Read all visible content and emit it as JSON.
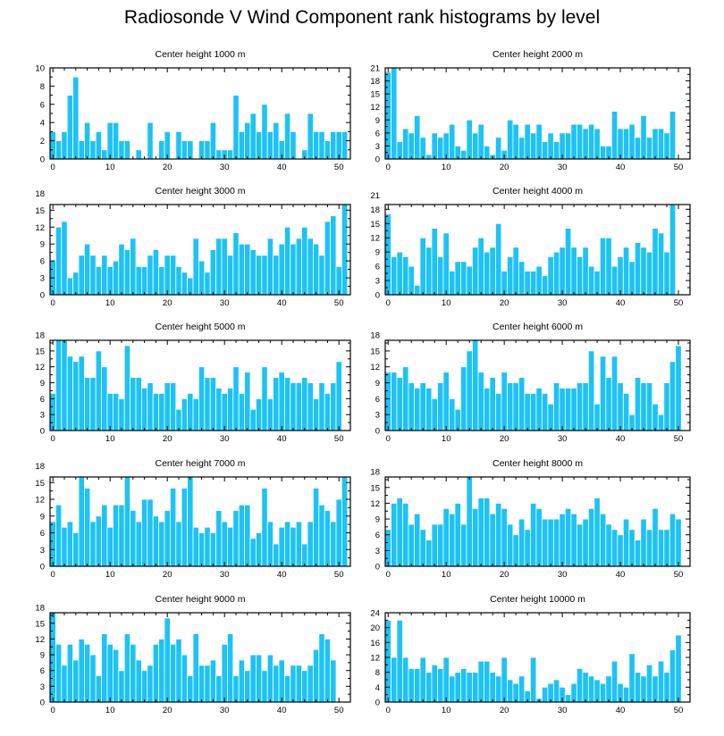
{
  "title": "Radiosonde V Wind Component rank histograms by level",
  "colors": {
    "bar": "#1cc3f4",
    "bar_stroke": "#ffffff",
    "axis": "#000000"
  },
  "chart_data": [
    {
      "type": "bar",
      "title": "Center height 1000 m",
      "xlim": [
        -0.5,
        52
      ],
      "ylim": [
        0,
        10
      ],
      "xticks": [
        0,
        10,
        20,
        30,
        40,
        50
      ],
      "yticks": [
        0,
        2,
        4,
        6,
        8,
        10
      ],
      "values": [
        3,
        2,
        3,
        7,
        9,
        2,
        4,
        2,
        3,
        1,
        4,
        4,
        2,
        2,
        0,
        1,
        0,
        4,
        0,
        2,
        3,
        0,
        3,
        2,
        2,
        0,
        2,
        2,
        4,
        1,
        1,
        1,
        7,
        3,
        4,
        5,
        3,
        6,
        3,
        4,
        2,
        5,
        3,
        0,
        1,
        5,
        3,
        3,
        2,
        3,
        3,
        3
      ]
    },
    {
      "type": "bar",
      "title": "Center height 2000 m",
      "xlim": [
        -0.5,
        52
      ],
      "ylim": [
        0,
        21
      ],
      "xticks": [
        0,
        10,
        20,
        30,
        40,
        50
      ],
      "yticks": [
        0,
        3,
        6,
        9,
        12,
        15,
        18,
        21
      ],
      "values": [
        20,
        21,
        4,
        7,
        6,
        10,
        5,
        1,
        6,
        5,
        6,
        8,
        3,
        2,
        9,
        6,
        8,
        3,
        1,
        5,
        2,
        9,
        8,
        5,
        8,
        6,
        8,
        4,
        6,
        4,
        6,
        6,
        8,
        8,
        7,
        8,
        7,
        3,
        3,
        11,
        7,
        7,
        8,
        5,
        10,
        5,
        7,
        7,
        6,
        11,
        0,
        0
      ]
    },
    {
      "type": "bar",
      "title": "Center height 3000 m",
      "xlim": [
        -0.5,
        52
      ],
      "ylim": [
        0,
        16
      ],
      "xticks": [
        0,
        10,
        20,
        30,
        40,
        50
      ],
      "yticks": [
        0,
        3,
        6,
        9,
        12,
        15,
        18
      ],
      "values": [
        6,
        12,
        13,
        3,
        4,
        7,
        9,
        7,
        5,
        7,
        5,
        6,
        9,
        8,
        10,
        5,
        5,
        7,
        8,
        5,
        7,
        7,
        5,
        4,
        3,
        10,
        6,
        4,
        8,
        10,
        10,
        7,
        11,
        9,
        9,
        8,
        7,
        7,
        10,
        7,
        9,
        12,
        9,
        10,
        12,
        10,
        9,
        7,
        13,
        14,
        5,
        16
      ]
    },
    {
      "type": "bar",
      "title": "Center height 4000 m",
      "xlim": [
        -0.5,
        52
      ],
      "ylim": [
        0,
        19
      ],
      "xticks": [
        0,
        10,
        20,
        30,
        40,
        50
      ],
      "yticks": [
        0,
        3,
        6,
        9,
        12,
        15,
        18,
        21
      ],
      "values": [
        17,
        8,
        9,
        8,
        6,
        2,
        12,
        10,
        14,
        8,
        13,
        5,
        7,
        7,
        6,
        10,
        12,
        9,
        10,
        15,
        5,
        8,
        10,
        7,
        5,
        5,
        6,
        4,
        8,
        9,
        10,
        14,
        10,
        8,
        10,
        6,
        5,
        12,
        12,
        6,
        8,
        10,
        7,
        11,
        10,
        9,
        14,
        13,
        9,
        19,
        0,
        0
      ]
    },
    {
      "type": "bar",
      "title": "Center height 5000 m",
      "xlim": [
        -0.5,
        52
      ],
      "ylim": [
        0,
        17
      ],
      "xticks": [
        0,
        10,
        20,
        30,
        40,
        50
      ],
      "yticks": [
        0,
        3,
        6,
        9,
        12,
        15,
        18
      ],
      "values": [
        7,
        17,
        17,
        14,
        13,
        14,
        10,
        10,
        15,
        12,
        7,
        7,
        6,
        16,
        10,
        10,
        8,
        9,
        7,
        7,
        9,
        9,
        4,
        6,
        7,
        6,
        12,
        10,
        10,
        8,
        7,
        8,
        12,
        7,
        11,
        4,
        6,
        12,
        6,
        10,
        11,
        10,
        9,
        9,
        10,
        9,
        6,
        9,
        7,
        9,
        13,
        0
      ]
    },
    {
      "type": "bar",
      "title": "Center height 6000 m",
      "xlim": [
        -0.5,
        52
      ],
      "ylim": [
        0,
        17
      ],
      "xticks": [
        0,
        10,
        20,
        30,
        40,
        50
      ],
      "yticks": [
        0,
        3,
        6,
        9,
        12,
        15,
        18
      ],
      "values": [
        11,
        11,
        10,
        12,
        9,
        8,
        9,
        8,
        6,
        9,
        11,
        6,
        4,
        12,
        15,
        17,
        11,
        8,
        10,
        7,
        11,
        9,
        9,
        10,
        7,
        7,
        8,
        7,
        5,
        9,
        8,
        8,
        8,
        9,
        9,
        15,
        5,
        14,
        10,
        14,
        9,
        7,
        3,
        10,
        9,
        9,
        5,
        3,
        9,
        13,
        16,
        0
      ]
    },
    {
      "type": "bar",
      "title": "Center height 7000 m",
      "xlim": [
        -0.5,
        52
      ],
      "ylim": [
        0,
        16
      ],
      "xticks": [
        0,
        10,
        20,
        30,
        40,
        50
      ],
      "yticks": [
        0,
        3,
        6,
        9,
        12,
        15,
        18
      ],
      "values": [
        8,
        11,
        7,
        8,
        6,
        17,
        14,
        8,
        9,
        11,
        7,
        11,
        11,
        16,
        10,
        8,
        12,
        12,
        9,
        8,
        10,
        14,
        8,
        14,
        16,
        7,
        6,
        7,
        6,
        10,
        8,
        7,
        10,
        11,
        11,
        5,
        6,
        14,
        8,
        4,
        7,
        8,
        7,
        8,
        4,
        8,
        14,
        11,
        10,
        8,
        12,
        16
      ]
    },
    {
      "type": "bar",
      "title": "Center height 8000 m",
      "xlim": [
        -0.5,
        52
      ],
      "ylim": [
        0,
        17
      ],
      "xticks": [
        0,
        10,
        20,
        30,
        40,
        50
      ],
      "yticks": [
        0,
        3,
        6,
        9,
        12,
        15,
        18
      ],
      "values": [
        7,
        12,
        13,
        12,
        8,
        10,
        7,
        5,
        8,
        8,
        11,
        10,
        12,
        8,
        17,
        11,
        13,
        13,
        10,
        12,
        11,
        8,
        6,
        9,
        7,
        12,
        11,
        9,
        9,
        9,
        10,
        11,
        10,
        8,
        9,
        11,
        13,
        10,
        8,
        7,
        6,
        9,
        7,
        5,
        9,
        7,
        11,
        7,
        7,
        10,
        9,
        0
      ]
    },
    {
      "type": "bar",
      "title": "Center height 9000 m",
      "xlim": [
        -0.5,
        52
      ],
      "ylim": [
        0,
        17
      ],
      "xticks": [
        0,
        10,
        20,
        30,
        40,
        50
      ],
      "yticks": [
        0,
        3,
        6,
        9,
        12,
        15,
        18
      ],
      "values": [
        17,
        11,
        7,
        11,
        8,
        12,
        11,
        9,
        5,
        13,
        11,
        10,
        6,
        13,
        11,
        8,
        6,
        7,
        11,
        12,
        16,
        11,
        12,
        9,
        5,
        13,
        7,
        7,
        8,
        5,
        11,
        13,
        5,
        8,
        6,
        9,
        9,
        6,
        9,
        7,
        8,
        5,
        7,
        7,
        6,
        7,
        10,
        13,
        12,
        8,
        0,
        0
      ]
    },
    {
      "type": "bar",
      "title": "Center height 10000 m",
      "xlim": [
        -0.5,
        52
      ],
      "ylim": [
        0,
        24
      ],
      "xticks": [
        0,
        10,
        20,
        30,
        40,
        50
      ],
      "yticks": [
        0,
        4,
        8,
        12,
        16,
        20,
        24
      ],
      "values": [
        22,
        12,
        22,
        12,
        9,
        9,
        12,
        8,
        10,
        9,
        12,
        7,
        8,
        9,
        8,
        8,
        11,
        11,
        8,
        7,
        12,
        6,
        5,
        7,
        3,
        12,
        1,
        4,
        5,
        6,
        4,
        2,
        5,
        9,
        8,
        7,
        6,
        5,
        7,
        11,
        5,
        4,
        13,
        8,
        7,
        10,
        7,
        11,
        8,
        14,
        18,
        0
      ]
    }
  ]
}
